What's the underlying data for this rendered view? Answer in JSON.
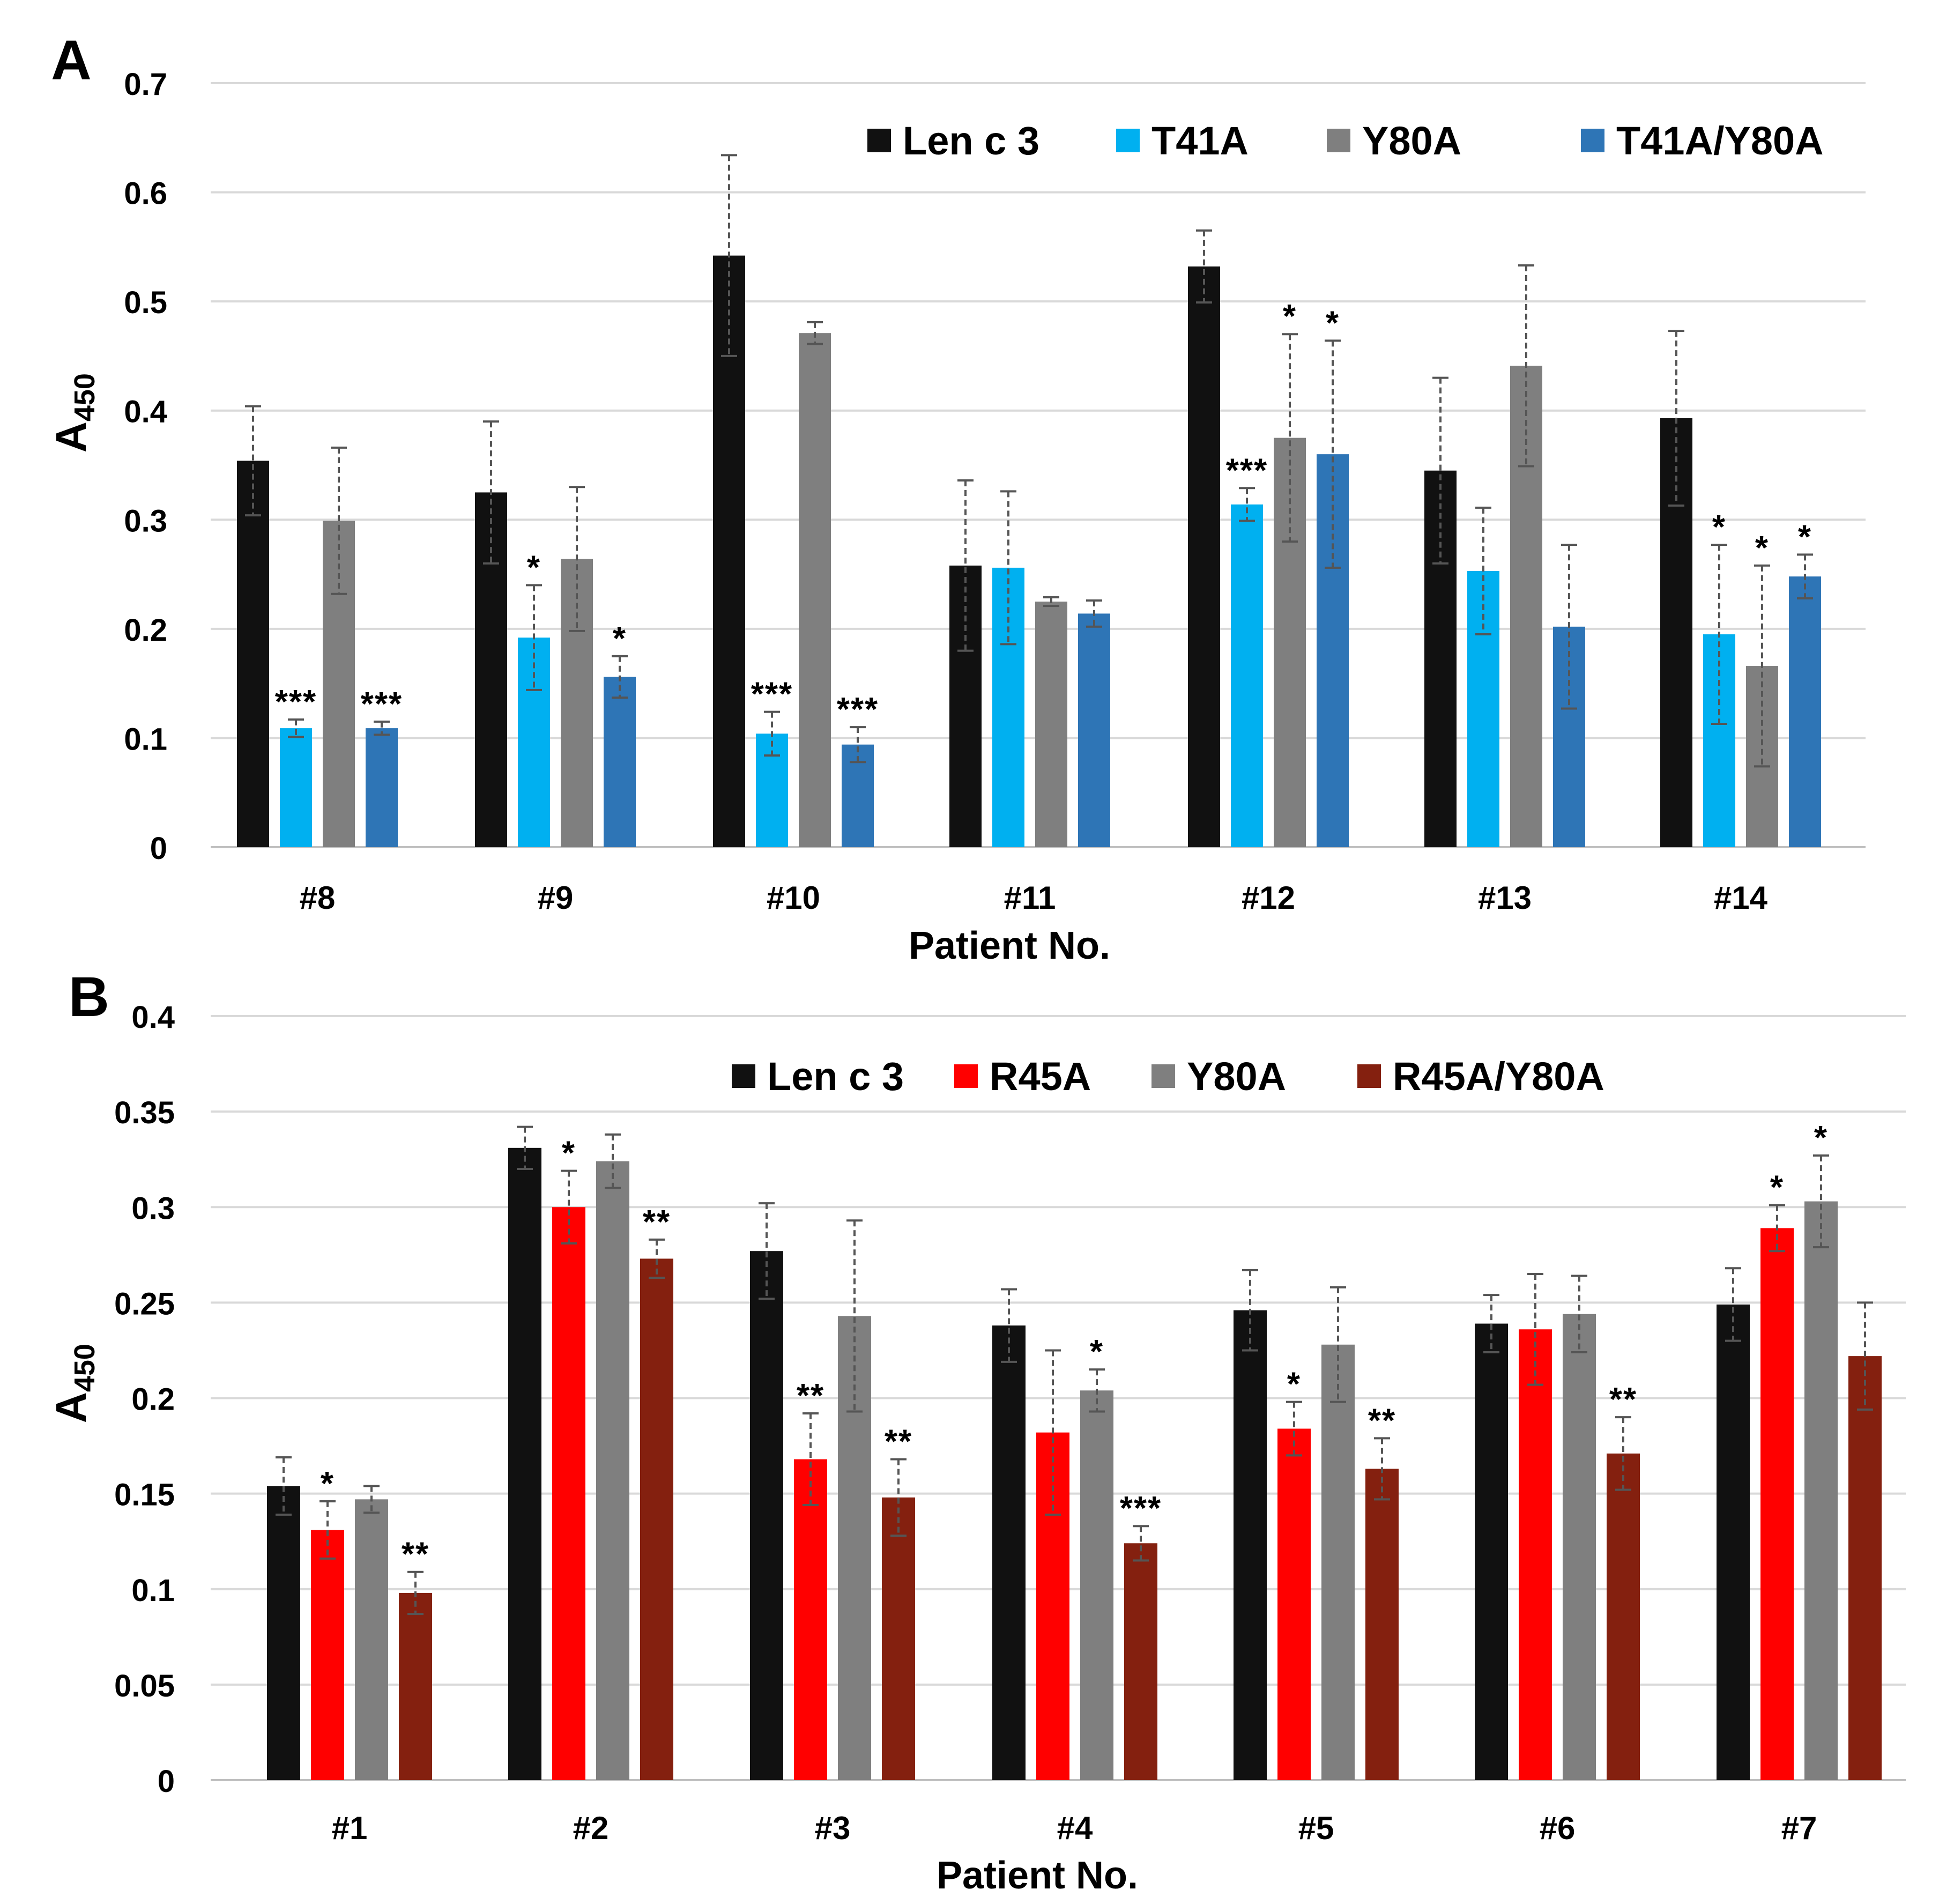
{
  "chart_data": [
    {
      "type": "bar",
      "panel_label": "A",
      "title": "",
      "xlabel": "Patient No.",
      "ylabel_main": "A",
      "ylabel_sub": "450",
      "ylim": [
        0,
        0.7
      ],
      "ytick_step": 0.1,
      "ytick_labels": [
        "0",
        "0.1",
        "0.2",
        "0.3",
        "0.4",
        "0.5",
        "0.6",
        "0.7"
      ],
      "grid": true,
      "legend_position": "top-right",
      "categories": [
        "#8",
        "#9",
        "#10",
        "#11",
        "#12",
        "#13",
        "#14"
      ],
      "series": [
        {
          "name": "Len c 3",
          "color": "#111111",
          "values": [
            0.354,
            0.325,
            0.542,
            0.258,
            0.532,
            0.345,
            0.393
          ],
          "errors": [
            0.05,
            0.065,
            0.092,
            0.078,
            0.033,
            0.085,
            0.08
          ],
          "significance": [
            "",
            "",
            "",
            "",
            "",
            "",
            ""
          ]
        },
        {
          "name": "T41A",
          "color": "#00b0f0",
          "values": [
            0.109,
            0.192,
            0.104,
            0.256,
            0.314,
            0.253,
            0.195
          ],
          "errors": [
            0.008,
            0.048,
            0.02,
            0.07,
            0.015,
            0.058,
            0.082
          ],
          "significance": [
            "***",
            "*",
            "***",
            "",
            "***",
            "",
            "*"
          ]
        },
        {
          "name": "Y80A",
          "color": "#7f7f7f",
          "values": [
            0.299,
            0.264,
            0.471,
            0.225,
            0.375,
            0.441,
            0.166
          ],
          "errors": [
            0.067,
            0.066,
            0.01,
            0.004,
            0.095,
            0.092,
            0.092
          ],
          "significance": [
            "",
            "",
            "",
            "",
            "*",
            "",
            "*"
          ]
        },
        {
          "name": "T41A/Y80A",
          "color": "#2e75b6",
          "values": [
            0.109,
            0.156,
            0.094,
            0.214,
            0.36,
            0.202,
            0.248
          ],
          "errors": [
            0.006,
            0.019,
            0.016,
            0.012,
            0.104,
            0.075,
            0.02
          ],
          "significance": [
            "***",
            "*",
            "***",
            "",
            "*",
            "",
            "*"
          ]
        }
      ]
    },
    {
      "type": "bar",
      "panel_label": "B",
      "title": "",
      "xlabel": "Patient No.",
      "ylabel_main": "A",
      "ylabel_sub": "450",
      "ylim": [
        0,
        0.4
      ],
      "ytick_step": 0.05,
      "ytick_labels": [
        "0",
        "0.05",
        "0.1",
        "0.15",
        "0.2",
        "0.25",
        "0.3",
        "0.35",
        "0.4"
      ],
      "grid": true,
      "legend_position": "top-right",
      "categories": [
        "#1",
        "#2",
        "#3",
        "#4",
        "#5",
        "#6",
        "#7"
      ],
      "series": [
        {
          "name": "Len c 3",
          "color": "#111111",
          "values": [
            0.154,
            0.331,
            0.277,
            0.238,
            0.246,
            0.239,
            0.249
          ],
          "errors": [
            0.015,
            0.011,
            0.025,
            0.019,
            0.021,
            0.015,
            0.019
          ],
          "significance": [
            "",
            "",
            "",
            "",
            "",
            "",
            ""
          ]
        },
        {
          "name": "R45A",
          "color": "#ff0000",
          "values": [
            0.131,
            0.3,
            0.168,
            0.182,
            0.184,
            0.236,
            0.289
          ],
          "errors": [
            0.015,
            0.019,
            0.024,
            0.043,
            0.014,
            0.029,
            0.012
          ],
          "significance": [
            "*",
            "*",
            "**",
            "",
            "*",
            "",
            "*"
          ]
        },
        {
          "name": "Y80A",
          "color": "#7f7f7f",
          "values": [
            0.147,
            0.324,
            0.243,
            0.204,
            0.228,
            0.244,
            0.303
          ],
          "errors": [
            0.007,
            0.014,
            0.05,
            0.011,
            0.03,
            0.02,
            0.024
          ],
          "significance": [
            "",
            "",
            "",
            "*",
            "",
            "",
            "*"
          ]
        },
        {
          "name": "R45A/Y80A",
          "color": "#84200f",
          "values": [
            0.098,
            0.273,
            0.148,
            0.124,
            0.163,
            0.171,
            0.222
          ],
          "errors": [
            0.011,
            0.01,
            0.02,
            0.009,
            0.016,
            0.019,
            0.028
          ],
          "significance": [
            "**",
            "**",
            "**",
            "***",
            "**",
            "**",
            ""
          ]
        }
      ]
    }
  ]
}
